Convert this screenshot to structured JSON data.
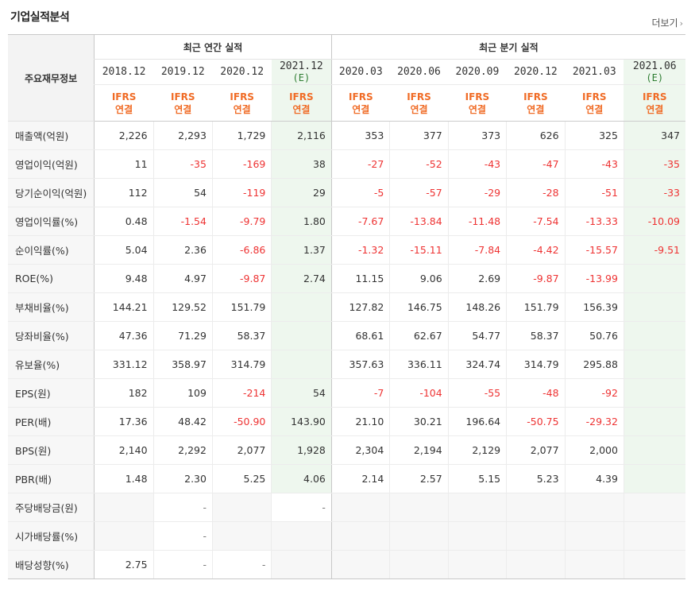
{
  "title": "기업실적분석",
  "more_label": "더보기",
  "header": {
    "row_label": "주요재무정보",
    "annual_group": "최근 연간 실적",
    "quarter_group": "최근 분기 실적",
    "periods": [
      {
        "label": "2018.12",
        "est": ""
      },
      {
        "label": "2019.12",
        "est": ""
      },
      {
        "label": "2020.12",
        "est": ""
      },
      {
        "label": "2021.12",
        "est": "(E)"
      },
      {
        "label": "2020.03",
        "est": ""
      },
      {
        "label": "2020.06",
        "est": ""
      },
      {
        "label": "2020.09",
        "est": ""
      },
      {
        "label": "2020.12",
        "est": ""
      },
      {
        "label": "2021.03",
        "est": ""
      },
      {
        "label": "2021.06",
        "est": "(E)"
      }
    ],
    "ifrs_top": "IFRS",
    "ifrs_bottom": "연결"
  },
  "rows": [
    {
      "label": "매출액(억원)",
      "values": [
        "2,226",
        "2,293",
        "1,729",
        "2,116",
        "353",
        "377",
        "373",
        "626",
        "325",
        "347"
      ]
    },
    {
      "label": "영업이익(억원)",
      "values": [
        "11",
        "-35",
        "-169",
        "38",
        "-27",
        "-52",
        "-43",
        "-47",
        "-43",
        "-35"
      ]
    },
    {
      "label": "당기순이익(억원)",
      "values": [
        "112",
        "54",
        "-119",
        "29",
        "-5",
        "-57",
        "-29",
        "-28",
        "-51",
        "-33"
      ]
    },
    {
      "label": "영업이익률(%)",
      "values": [
        "0.48",
        "-1.54",
        "-9.79",
        "1.80",
        "-7.67",
        "-13.84",
        "-11.48",
        "-7.54",
        "-13.33",
        "-10.09"
      ]
    },
    {
      "label": "순이익률(%)",
      "values": [
        "5.04",
        "2.36",
        "-6.86",
        "1.37",
        "-1.32",
        "-15.11",
        "-7.84",
        "-4.42",
        "-15.57",
        "-9.51"
      ]
    },
    {
      "label": "ROE(%)",
      "values": [
        "9.48",
        "4.97",
        "-9.87",
        "2.74",
        "11.15",
        "9.06",
        "2.69",
        "-9.87",
        "-13.99",
        ""
      ]
    },
    {
      "label": "부채비율(%)",
      "values": [
        "144.21",
        "129.52",
        "151.79",
        "",
        "127.82",
        "146.75",
        "148.26",
        "151.79",
        "156.39",
        ""
      ]
    },
    {
      "label": "당좌비율(%)",
      "values": [
        "47.36",
        "71.29",
        "58.37",
        "",
        "68.61",
        "62.67",
        "54.77",
        "58.37",
        "50.76",
        ""
      ]
    },
    {
      "label": "유보율(%)",
      "values": [
        "331.12",
        "358.97",
        "314.79",
        "",
        "357.63",
        "336.11",
        "324.74",
        "314.79",
        "295.88",
        ""
      ]
    },
    {
      "label": "EPS(원)",
      "values": [
        "182",
        "109",
        "-214",
        "54",
        "-7",
        "-104",
        "-55",
        "-48",
        "-92",
        ""
      ]
    },
    {
      "label": "PER(배)",
      "values": [
        "17.36",
        "48.42",
        "-50.90",
        "143.90",
        "21.10",
        "30.21",
        "196.64",
        "-50.75",
        "-29.32",
        ""
      ]
    },
    {
      "label": "BPS(원)",
      "values": [
        "2,140",
        "2,292",
        "2,077",
        "1,928",
        "2,304",
        "2,194",
        "2,129",
        "2,077",
        "2,000",
        ""
      ]
    },
    {
      "label": "PBR(배)",
      "values": [
        "1.48",
        "2.30",
        "5.25",
        "4.06",
        "2.14",
        "2.57",
        "5.15",
        "5.23",
        "4.39",
        ""
      ]
    },
    {
      "label": "주당배당금(원)",
      "values": [
        "",
        "-",
        "",
        "-",
        "",
        "",
        "",
        "",
        "",
        ""
      ]
    },
    {
      "label": "시가배당률(%)",
      "values": [
        "",
        "-",
        "",
        "",
        "",
        "",
        "",
        "",
        "",
        ""
      ]
    },
    {
      "label": "배당성향(%)",
      "values": [
        "2.75",
        "-",
        "-",
        "",
        "",
        "",
        "",
        "",
        "",
        ""
      ]
    }
  ]
}
